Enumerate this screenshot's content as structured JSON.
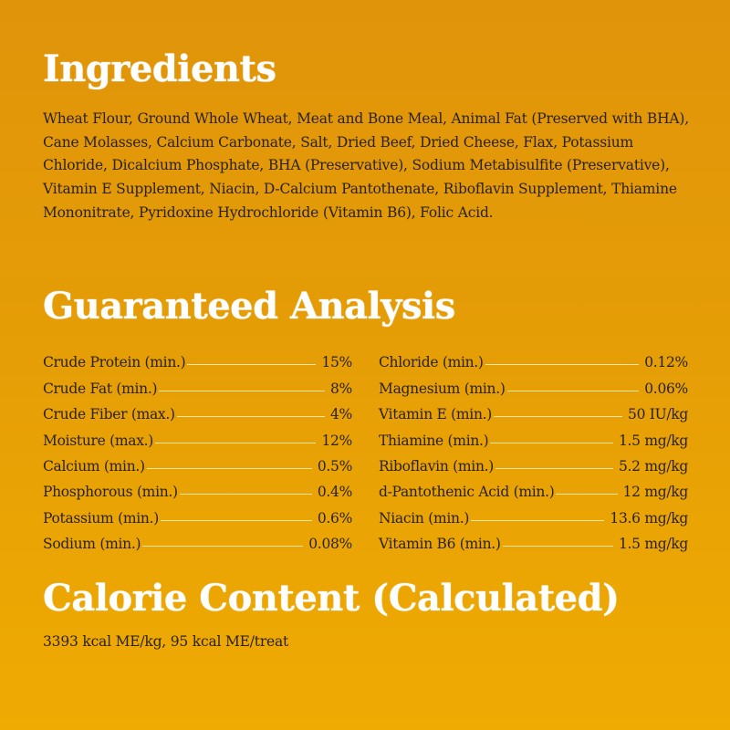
{
  "sections": {
    "ingredients": {
      "title": "Ingredients",
      "text": "Wheat Flour, Ground Whole Wheat, Meat and Bone Meal, Animal Fat (Preserved with BHA), Cane Molasses, Calcium Carbonate, Salt, Dried Beef, Dried Cheese, Flax, Potassium Chloride, Dicalcium Phosphate, BHA (Preservative), Sodium Metabisulfite (Preservative), Vitamin E Supplement, Niacin, D-Calcium Pantothenate, Riboflavin Supplement, Thiamine Mononitrate, Pyridoxine Hydrochloride (Vitamin B6), Folic Acid."
    },
    "guaranteed_analysis": {
      "title": "Guaranteed Analysis",
      "left": [
        {
          "label": "Crude Protein (min.)",
          "value": "15%"
        },
        {
          "label": "Crude Fat (min.)",
          "value": "8%"
        },
        {
          "label": "Crude Fiber (max.)",
          "value": "4%"
        },
        {
          "label": "Moisture (max.)",
          "value": "12%"
        },
        {
          "label": "Calcium (min.)",
          "value": "0.5%"
        },
        {
          "label": "Phosphorous (min.)",
          "value": "0.4%"
        },
        {
          "label": "Potassium (min.)",
          "value": "0.6%"
        },
        {
          "label": "Sodium (min.)",
          "value": "0.08%"
        }
      ],
      "right": [
        {
          "label": "Chloride (min.)",
          "value": "0.12%"
        },
        {
          "label": "Magnesium (min.)",
          "value": "0.06%"
        },
        {
          "label": "Vitamin E (min.)",
          "value": "50 IU/kg"
        },
        {
          "label": "Thiamine (min.)",
          "value": "1.5 mg/kg"
        },
        {
          "label": "Riboflavin (min.)",
          "value": "5.2 mg/kg"
        },
        {
          "label": "d-Pantothenic Acid (min.)",
          "value": "12 mg/kg"
        },
        {
          "label": "Niacin (min.)",
          "value": "13.6 mg/kg"
        },
        {
          "label": "Vitamin B6 (min.)",
          "value": "1.5 mg/kg"
        }
      ]
    },
    "calorie_content": {
      "title": "Calorie Content (Calculated)",
      "text": "3393 kcal ME/kg, 95 kcal ME/treat"
    }
  },
  "colors": {
    "background_top": "#e0940a",
    "background_bottom": "#efab02",
    "heading": "#ffffff",
    "body_text": "#2a2218",
    "leader_line": "#fbe6a8"
  }
}
